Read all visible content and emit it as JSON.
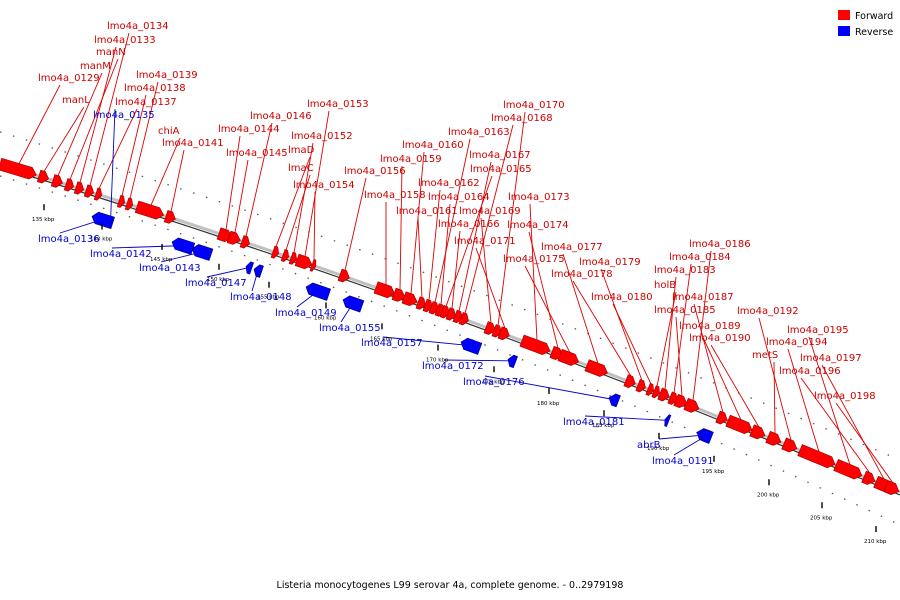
{
  "caption": "Listeria monocytogenes L99 serovar 4a, complete genome. - 0..2979198",
  "legend": [
    {
      "label": "Forward",
      "color": "#ff0000"
    },
    {
      "label": "Reverse",
      "color": "#0000ff"
    }
  ],
  "colors": {
    "forward": "#ff0000",
    "reverse": "#0000ff",
    "forward_label": "#cc0000",
    "reverse_label": "#0000cc"
  },
  "scale_ticks": [
    "135 kbp",
    "140 kbp",
    "145 kbp",
    "150 kbp",
    "155 kbp",
    "160 kbp",
    "165 kbp",
    "170 kbp",
    "175 kbp",
    "180 kbp",
    "185 kbp",
    "190 kbp",
    "195 kbp",
    "200 kbp",
    "205 kbp",
    "210 kbp"
  ],
  "forward_genes": [
    "lmo4a_0129",
    "manL",
    "manM",
    "manN",
    "lmo4a_0133",
    "lmo4a_0134",
    "lmo4a_0137",
    "lmo4a_0138",
    "lmo4a_0139",
    "chiA",
    "lmo4a_0141",
    "lmo4a_0144",
    "lmo4a_0145",
    "lmo4a_0146",
    "lmaD",
    "lmaC",
    "lmo4a_0152",
    "lmo4a_0153",
    "lmo4a_0154",
    "lmo4a_0156",
    "lmo4a_0158",
    "lmo4a_0159",
    "lmo4a_0160",
    "lmo4a_0161",
    "lmo4a_0162",
    "lmo4a_0163",
    "lmo4a_0164",
    "lmo4a_0165",
    "lmo4a_0166",
    "lmo4a_0167",
    "lmo4a_0168",
    "lmo4a_0169",
    "lmo4a_0170",
    "lmo4a_0171",
    "lmo4a_0173",
    "lmo4a_0174",
    "lmo4a_0175",
    "lmo4a_0177",
    "lmo4a_0178",
    "lmo4a_0179",
    "lmo4a_0180",
    "holB",
    "lmo4a_0183",
    "lmo4a_0184",
    "lmo4a_0185",
    "lmo4a_0186",
    "lmo4a_0187",
    "lmo4a_0189",
    "lmo4a_0190",
    "metS",
    "lmo4a_0192",
    "lmo4a_0194",
    "lmo4a_0195",
    "lmo4a_0196",
    "lmo4a_0197",
    "lmo4a_0198"
  ],
  "reverse_genes": [
    "lmo4a_0135",
    "lmo4a_0136",
    "lmo4a_0142",
    "lmo4a_0143",
    "lmo4a_0147",
    "lmo4a_0148",
    "lmo4a_0149",
    "lmo4a_0155",
    "lmo4a_0157",
    "lmo4a_0172",
    "lmo4a_0176",
    "lmo4a_0181",
    "abrB",
    "lmo4a_0191"
  ]
}
